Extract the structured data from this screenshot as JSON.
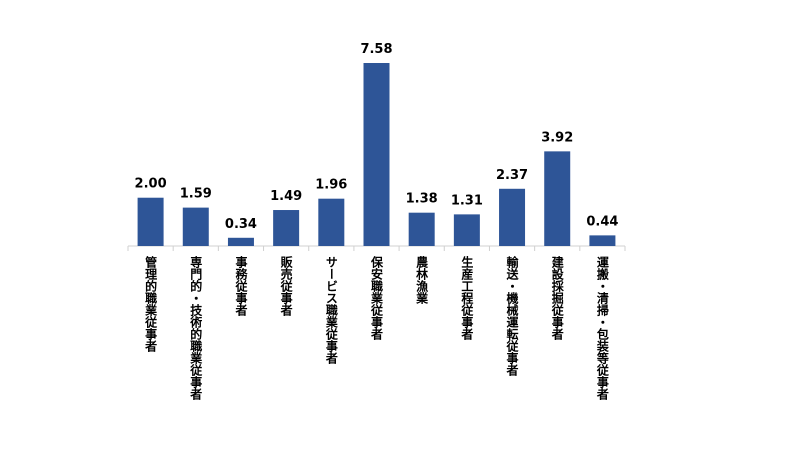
{
  "chart_data": {
    "type": "bar",
    "categories": [
      "管理的職業従事者",
      "専門的・技術的職業従事者",
      "事務従事者",
      "販売従事者",
      "サービス職業従事者",
      "保安職業従事者",
      "農林漁業",
      "生産工程従事者",
      "輸送・機械運転従事者",
      "建設採掘従事者",
      "運搬・清掃・包装等従事者"
    ],
    "values": [
      2.0,
      1.59,
      0.34,
      1.49,
      1.96,
      7.58,
      1.38,
      1.31,
      2.37,
      3.92,
      0.44
    ],
    "value_labels": [
      "2.00",
      "1.59",
      "0.34",
      "1.49",
      "1.96",
      "7.58",
      "1.38",
      "1.31",
      "2.37",
      "3.92",
      "0.44"
    ],
    "color": "#2e5597"
  }
}
